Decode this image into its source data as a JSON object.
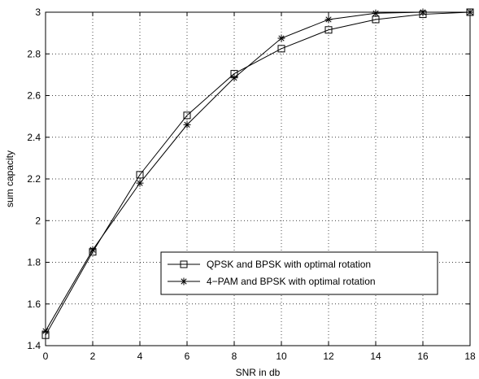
{
  "chart_data": {
    "type": "line",
    "title": "",
    "xlabel": "SNR in db",
    "ylabel": "sum capacity",
    "xlim": [
      0,
      18
    ],
    "ylim": [
      1.4,
      3
    ],
    "xticks": [
      0,
      2,
      4,
      6,
      8,
      10,
      12,
      14,
      16,
      18
    ],
    "yticks": [
      1.4,
      1.6,
      1.8,
      2,
      2.2,
      2.4,
      2.6,
      2.8,
      3
    ],
    "xtick_labels": [
      "0",
      "2",
      "4",
      "6",
      "8",
      "10",
      "12",
      "14",
      "16",
      "18"
    ],
    "ytick_labels": [
      "1.4",
      "1.6",
      "1.8",
      "2",
      "2.2",
      "2.4",
      "2.6",
      "2.8",
      "3"
    ],
    "grid": true,
    "legend_position": "lower-right",
    "x": [
      0,
      2,
      4,
      6,
      8,
      10,
      12,
      14,
      16,
      18
    ],
    "series": [
      {
        "name": "QPSK and BPSK with optimal rotation",
        "marker": "square",
        "color": "#000000",
        "values": [
          1.45,
          1.85,
          2.22,
          2.505,
          2.705,
          2.825,
          2.915,
          2.965,
          2.99,
          3.0
        ]
      },
      {
        "name": "4−PAM and BPSK with optimal rotation",
        "marker": "star",
        "color": "#000000",
        "values": [
          1.47,
          1.86,
          2.18,
          2.46,
          2.685,
          2.875,
          2.965,
          2.995,
          3.0,
          3.0
        ]
      }
    ]
  }
}
